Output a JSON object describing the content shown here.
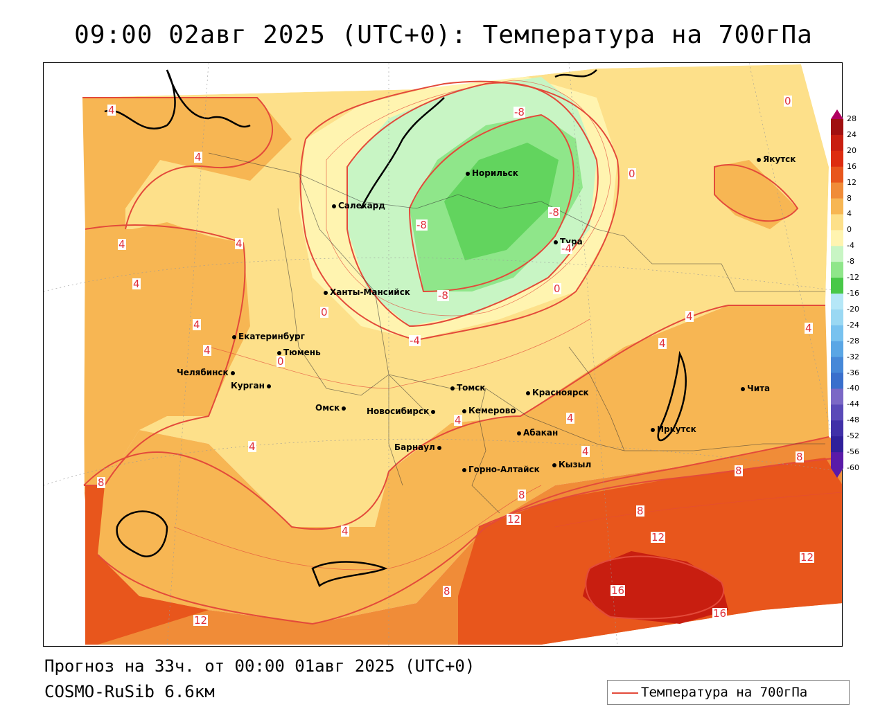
{
  "title": "09:00 02авг 2025 (UTC+0): Температура на 700гПа",
  "footer": {
    "forecast": "Прогноз на 33ч. от 00:00 01авг 2025 (UTC+0)",
    "model": "COSMO-RuSib 6.6км"
  },
  "legend": {
    "label": "Температура на 700гПа",
    "color": "#e34a3a"
  },
  "colors": {
    "contour": "#e34a3a",
    "level_colors": {
      "28": "#b00060",
      "24": "#a01010",
      "20": "#c81e10",
      "16": "#dd2c10",
      "12": "#e8561c",
      "8": "#f08c38",
      "4": "#f7b653",
      "0": "#fde08a",
      "-4": "#fff4b0",
      "-8": "#c8f5c4",
      "-12": "#8fe68a",
      "-16": "#48c848",
      "-20": "#b5e7f7",
      "-24": "#9ad8f3",
      "-28": "#78c2ef",
      "-32": "#5aa6e5",
      "-36": "#4688d8",
      "-40": "#3a6fcc",
      "-44": "#7b68c6",
      "-48": "#5a4ab8",
      "-52": "#4030a8",
      "-56": "#30209a",
      "-60": "#5a1aa8"
    }
  },
  "colorbar": {
    "levels": [
      "28",
      "24",
      "20",
      "16",
      "12",
      "8",
      "4",
      "0",
      "-4",
      "-8",
      "-12",
      "-16",
      "-20",
      "-24",
      "-28",
      "-32",
      "-36",
      "-40",
      "-44",
      "-48",
      "-52",
      "-56",
      "-60"
    ]
  },
  "cities": [
    {
      "name": "Норильск"
    },
    {
      "name": "Салехард"
    },
    {
      "name": "Тура"
    },
    {
      "name": "Якутск"
    },
    {
      "name": "Ханты-Мансийск"
    },
    {
      "name": "Екатеринбург"
    },
    {
      "name": "Тюмень"
    },
    {
      "name": "Челябинск"
    },
    {
      "name": "Курган"
    },
    {
      "name": "Омск"
    },
    {
      "name": "Новосибирск"
    },
    {
      "name": "Томск"
    },
    {
      "name": "Кемерово"
    },
    {
      "name": "Красноярск"
    },
    {
      "name": "Барнаул"
    },
    {
      "name": "Абакан"
    },
    {
      "name": "Иркутск"
    },
    {
      "name": "Чита"
    },
    {
      "name": "Горно-Алтайск"
    },
    {
      "name": "Кызыл"
    }
  ],
  "contour_labels": [
    "4",
    "4",
    "4",
    "4",
    "4",
    "4",
    "4",
    "0",
    "0",
    "0",
    "0",
    "0",
    "-8",
    "-8",
    "-8",
    "-8",
    "-4",
    "-4",
    "4",
    "4",
    "4",
    "4",
    "4",
    "4",
    "4",
    "8",
    "8",
    "8",
    "8",
    "8",
    "8",
    "12",
    "12",
    "12",
    "12",
    "16",
    "16",
    "4"
  ]
}
